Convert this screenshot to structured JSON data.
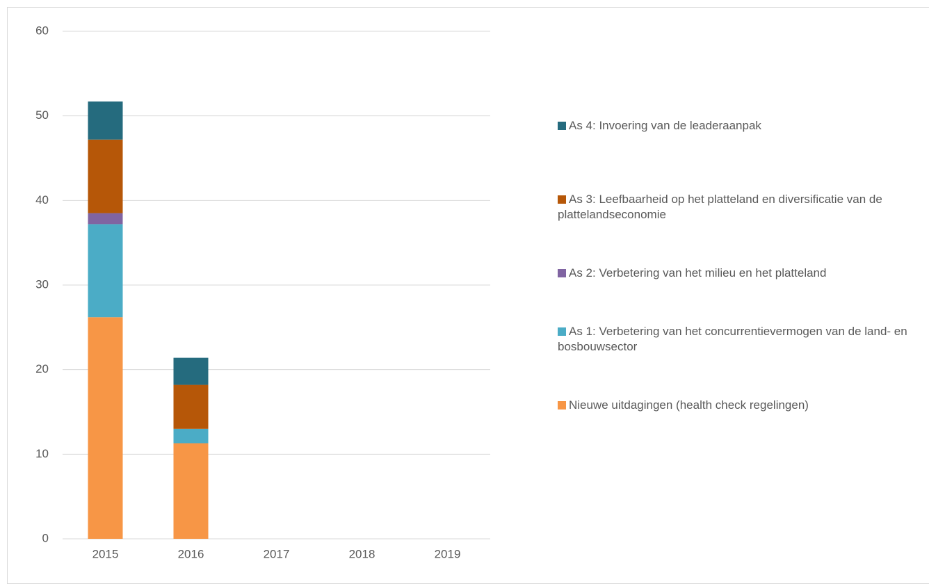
{
  "chart_data": {
    "type": "stacked_bar",
    "categories": [
      "2015",
      "2016",
      "2017",
      "2018",
      "2019"
    ],
    "series": [
      {
        "name": "Nieuwe uitdagingen (health check regelingen)",
        "color": "#f79646",
        "values": [
          26.2,
          11.3,
          null,
          null,
          null
        ]
      },
      {
        "name": "As 1: Verbetering van het concurrentievermogen van de land- en bosbouwsector",
        "color": "#4bacc6",
        "values": [
          11.0,
          1.7,
          null,
          null,
          null
        ]
      },
      {
        "name": "As 2: Verbetering van het milieu en het platteland",
        "color": "#8064a2",
        "values": [
          1.3,
          0,
          null,
          null,
          null
        ]
      },
      {
        "name": "As 3: Leefbaarheid op het platteland en diversificatie van de plattelandseconomie",
        "color": "#b65708",
        "values": [
          8.7,
          5.2,
          null,
          null,
          null
        ]
      },
      {
        "name": "As 4: Invoering van de leaderaanpak",
        "color": "#256b7e",
        "values": [
          4.5,
          3.2,
          null,
          null,
          null
        ]
      }
    ],
    "ylim": [
      0,
      60
    ],
    "yticks": [
      0,
      10,
      20,
      30,
      40,
      50,
      60
    ],
    "grid": true,
    "legend": "right"
  }
}
